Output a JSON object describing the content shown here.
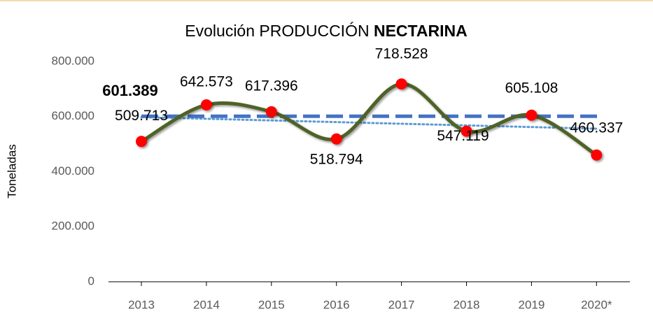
{
  "chart_data": {
    "type": "line",
    "title": [
      "Evolución PRODUCCIÓN",
      "NECTARINA"
    ],
    "y_label": "Toneladas",
    "categories": [
      "2013",
      "2014",
      "2015",
      "2016",
      "2017",
      "2018",
      "2019",
      "2020*"
    ],
    "series": [
      {
        "name": "Producción",
        "color": "#4f6228",
        "marker_color": "#ff0000",
        "values": [
          509713,
          642573,
          617396,
          518794,
          718528,
          547119,
          605108,
          460337
        ],
        "value_labels": [
          "509.713",
          "642.573",
          "617.396",
          "518.794",
          "718.528",
          "547.119",
          "605.108",
          "460.337"
        ]
      }
    ],
    "average": {
      "value": 601389,
      "label": "601.389",
      "color": "#4472c4"
    },
    "trend": {
      "values": [
        598000,
        556000
      ],
      "color": "#5b9bd5"
    },
    "ylim": [
      0,
      800000
    ],
    "yticks": [
      0,
      {
        "value": 200000,
        "label": "200.000"
      },
      {
        "value": 400000,
        "label": "400.000"
      },
      {
        "value": 600000,
        "label": "600.000"
      },
      {
        "value": 800000,
        "label": "800.000"
      }
    ]
  }
}
